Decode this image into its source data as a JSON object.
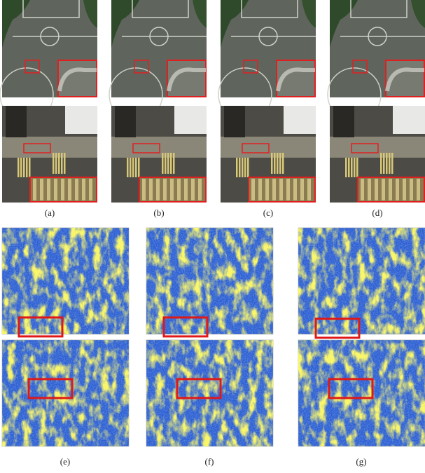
{
  "top_row_labels": [
    "(a)",
    "(b)",
    "(c)",
    "(d)"
  ],
  "bottom_row_labels": [
    "(e)",
    "(f)",
    "(g)"
  ]
}
